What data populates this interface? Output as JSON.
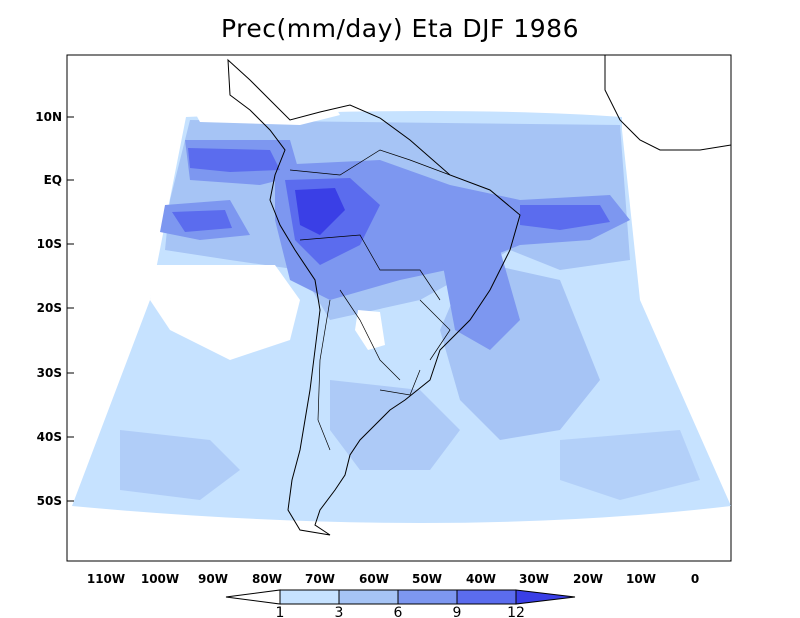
{
  "title": "Prec(mm/day) Eta DJF 1986",
  "lat_ticks": [
    "10N",
    "EQ",
    "10S",
    "20S",
    "30S",
    "40S",
    "50S"
  ],
  "lon_ticks": [
    "110W",
    "100W",
    "90W",
    "80W",
    "70W",
    "60W",
    "50W",
    "40W",
    "30W",
    "20W",
    "10W",
    "0"
  ],
  "colorbar": {
    "labels": [
      "1",
      "3",
      "6",
      "9",
      "12"
    ],
    "colors": [
      "#ffffff",
      "#c6e2ff",
      "#a6c4f5",
      "#7d97f0",
      "#5b6cee",
      "#3a3fe6"
    ]
  },
  "colors": {
    "ocean_light": "#c6e2ff",
    "level_3_6": "#a6c4f5",
    "level_6_9": "#7d97f0",
    "level_9_12": "#5b6cee",
    "level_12_plus": "#3a3fe6",
    "land_border": "#000000"
  }
}
